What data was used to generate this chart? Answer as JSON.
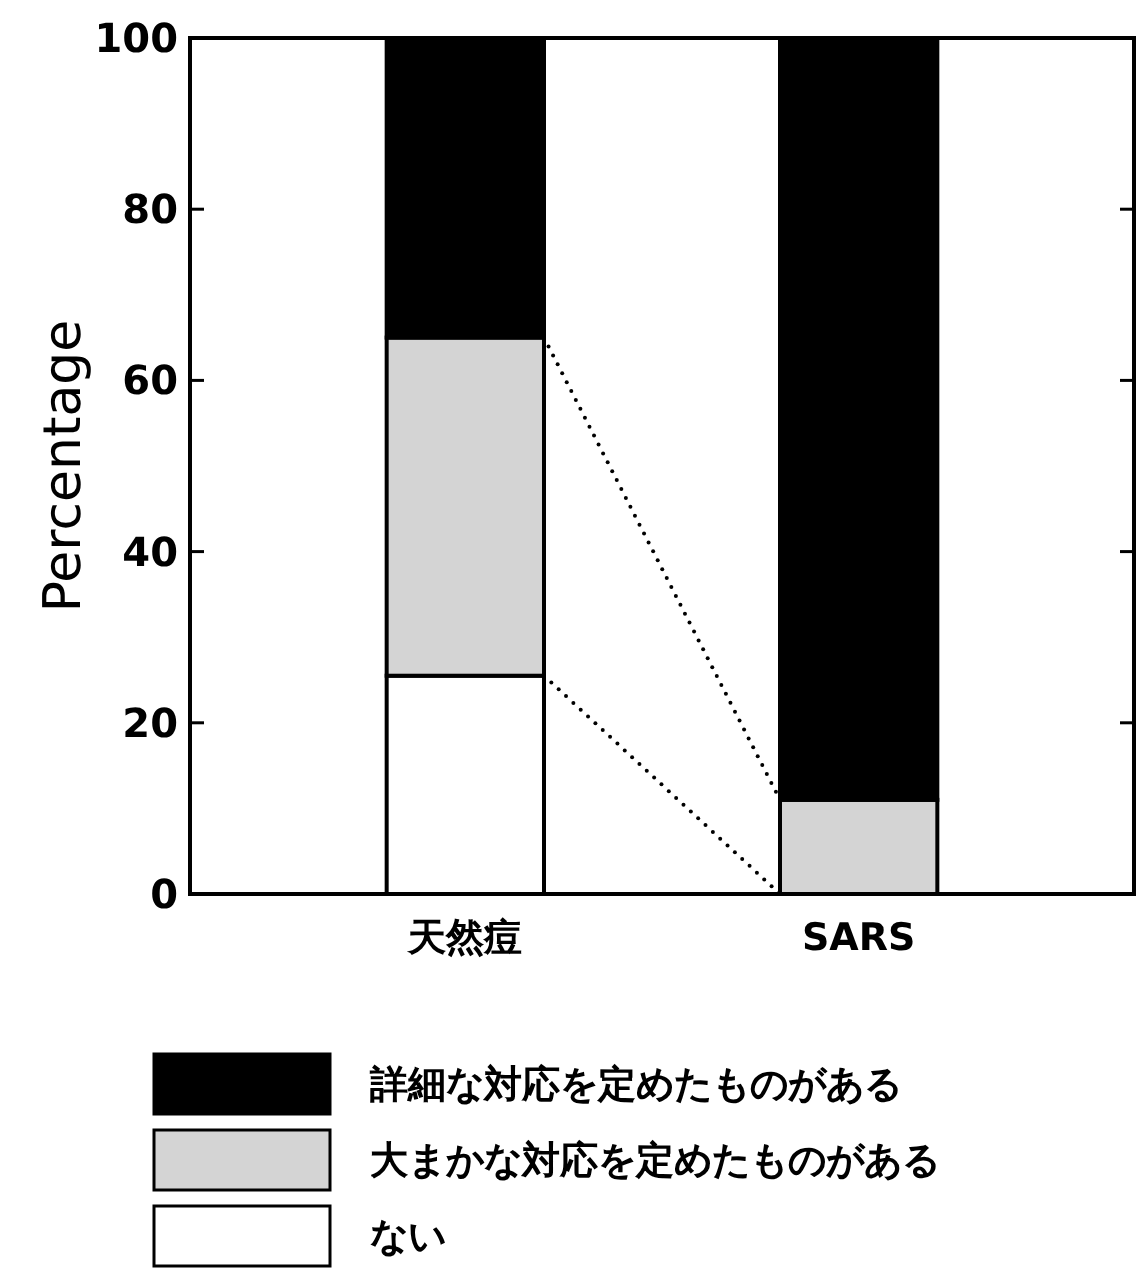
{
  "chart_data": {
    "type": "bar",
    "stacked": true,
    "ylabel": "Percentage",
    "categories": [
      "天然痘",
      "SARS"
    ],
    "series": [
      {
        "name": "ない",
        "color": "#ffffff",
        "values": [
          25.5,
          0
        ]
      },
      {
        "name": "大まかな対応を定めたものがある",
        "color": "#d4d4d4",
        "values": [
          39.5,
          11
        ]
      },
      {
        "name": "詳細な対応を定めたものがある",
        "color": "#000000",
        "values": [
          35,
          89
        ]
      }
    ],
    "ylim": [
      0,
      100
    ],
    "yticks": [
      0,
      20,
      40,
      60,
      80,
      100
    ],
    "grid": false,
    "legend": "bottom"
  }
}
